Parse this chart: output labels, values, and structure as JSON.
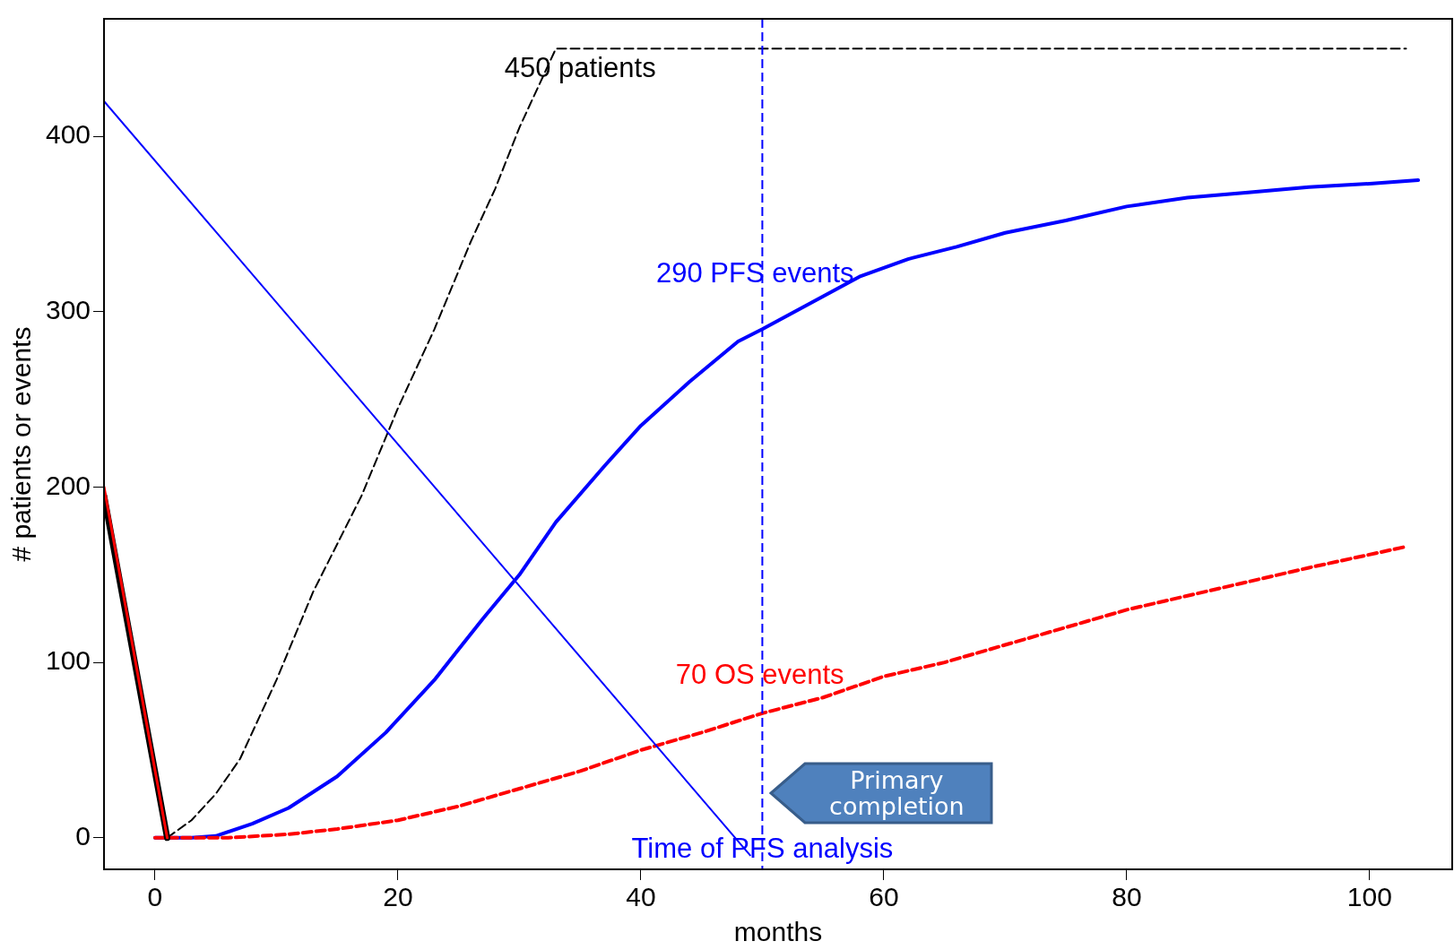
{
  "chart_data": {
    "type": "line",
    "xlabel": "months",
    "ylabel": "# patients or events",
    "xlim": [
      -4.2,
      106.8
    ],
    "ylim": [
      -18,
      467
    ],
    "xticks": [
      0,
      20,
      40,
      60,
      80,
      100
    ],
    "yticks": [
      0,
      100,
      200,
      300,
      400
    ],
    "grid": false,
    "legend": false,
    "marker": "none",
    "series": [
      {
        "color": "#000000",
        "line_style": "dashed",
        "x": [
          1,
          3,
          5,
          7,
          10,
          13,
          17,
          20,
          23,
          26,
          28,
          30,
          33,
          103
        ],
        "values": [
          0,
          10,
          25,
          45,
          90,
          140,
          195,
          245,
          290,
          340,
          370,
          405,
          450,
          450
        ]
      },
      {
        "color": "#0000ff",
        "line_style": "solid",
        "x": [
          0,
          3,
          5,
          8,
          11,
          15,
          19,
          23,
          27,
          30,
          33,
          37,
          40,
          44,
          48,
          50,
          54,
          58,
          62,
          66,
          70,
          75,
          80,
          85,
          90,
          95,
          100,
          104
        ],
        "values": [
          0,
          0,
          1,
          8,
          17,
          35,
          60,
          90,
          125,
          150,
          180,
          212,
          235,
          260,
          283,
          290,
          305,
          320,
          330,
          337,
          345,
          352,
          360,
          365,
          368,
          371,
          373,
          375
        ]
      },
      {
        "color": "#ff0000",
        "line_style": "dashed",
        "x": [
          0,
          6,
          11,
          15,
          20,
          25,
          30,
          35,
          40,
          45,
          50,
          55,
          60,
          65,
          70,
          75,
          80,
          85,
          90,
          95,
          103
        ],
        "values": [
          0,
          0,
          2,
          5,
          10,
          18,
          28,
          38,
          50,
          60,
          71,
          80,
          92,
          100,
          110,
          120,
          130,
          138,
          146,
          154,
          166
        ]
      },
      {
        "color": "#000000",
        "line_style": "solid",
        "x": [
          -4.2,
          1
        ],
        "values": [
          195,
          0
        ]
      },
      {
        "color": "#ff0000",
        "line_style": "solid",
        "x": [
          -4.2,
          1
        ],
        "values": [
          200,
          0
        ]
      },
      {
        "color": "#0000ff",
        "line_style": "solid",
        "x": [
          -4.2,
          49
        ],
        "values": [
          420,
          -10
        ]
      }
    ],
    "ref_lines": [
      {
        "axis": "x",
        "value": 50,
        "label": "Time of PFS analysis",
        "color": "#0000ff",
        "line_style": "dashed"
      }
    ],
    "annotations": [
      "450 patients",
      "290 PFS events",
      "70 OS events",
      "Primary completion"
    ]
  }
}
